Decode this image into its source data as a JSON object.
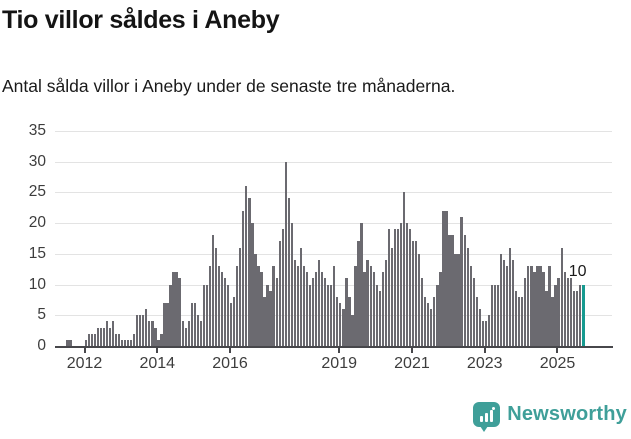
{
  "header": {
    "title": "Tio villor såldes i Aneby",
    "subtitle": "Antal sålda villor i Aneby under de senaste tre månaderna."
  },
  "colors": {
    "bar": "#6b6a70",
    "highlight": "#169a90",
    "grid": "#e3e3e3",
    "axis": "#47474b",
    "label": "#3d3d3d",
    "brand": "#3f9f99"
  },
  "chart_data": {
    "type": "bar",
    "title": "Tio villor såldes i Aneby",
    "subtitle": "Antal sålda villor i Aneby under de senaste tre månaderna.",
    "x_start": "2011-07",
    "x_interval": "month",
    "x_tick_labels": [
      "2012",
      "2014",
      "2016",
      "2019",
      "2021",
      "2023",
      "2025"
    ],
    "y_ticks": [
      0,
      5,
      10,
      15,
      20,
      25,
      30,
      35
    ],
    "ylim": [
      0,
      35
    ],
    "grid": "horizontal",
    "highlight_last_bar": true,
    "annotation": {
      "text": "10",
      "target": "last-bar"
    },
    "series": [
      {
        "name": "Antal sålda villor (rullande tre månader)",
        "values": [
          1,
          1,
          0,
          0,
          0,
          0,
          1,
          2,
          2,
          2,
          3,
          3,
          3,
          4,
          3,
          4,
          2,
          2,
          1,
          1,
          1,
          1,
          2,
          5,
          5,
          5,
          6,
          4,
          4,
          3,
          1,
          2,
          7,
          7,
          10,
          12,
          12,
          11,
          4,
          3,
          4,
          7,
          7,
          5,
          4,
          10,
          10,
          13,
          18,
          16,
          13,
          12,
          11,
          10,
          7,
          8,
          13,
          16,
          22,
          26,
          24,
          20,
          15,
          13,
          12,
          8,
          10,
          9,
          13,
          11,
          17,
          19,
          30,
          24,
          20,
          14,
          13,
          16,
          13,
          12,
          10,
          11,
          12,
          14,
          12,
          11,
          10,
          10,
          13,
          8,
          7,
          6,
          11,
          8,
          5,
          13,
          17,
          20,
          12,
          14,
          13,
          12,
          10,
          9,
          12,
          14,
          19,
          16,
          19,
          19,
          20,
          25,
          20,
          19,
          17,
          17,
          15,
          11,
          8,
          7,
          6,
          8,
          10,
          12,
          22,
          22,
          18,
          18,
          15,
          15,
          21,
          18,
          16,
          13,
          11,
          8,
          6,
          4,
          4,
          5,
          10,
          10,
          10,
          15,
          14,
          13,
          16,
          14,
          9,
          8,
          8,
          11,
          13,
          13,
          12,
          13,
          13,
          12,
          9,
          13,
          8,
          10,
          11,
          16,
          12,
          11,
          11,
          9,
          9,
          10,
          10
        ]
      }
    ]
  },
  "footer": {
    "brand": "Newsworthy"
  }
}
